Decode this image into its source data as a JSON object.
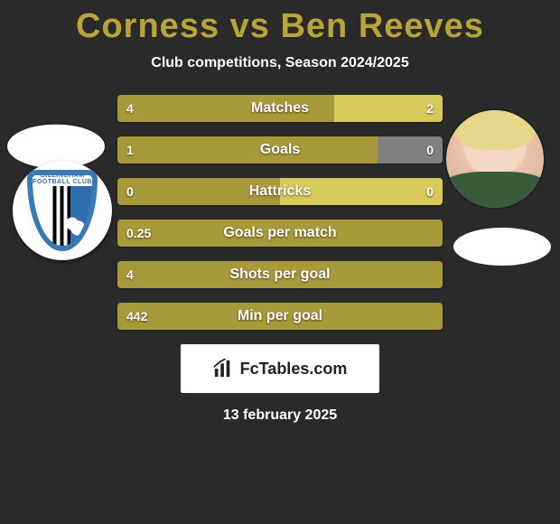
{
  "title_color": "#b7a53a",
  "player_left": "Corness",
  "player_right": "Ben Reeves",
  "subtitle": "Club competitions, Season 2024/2025",
  "left_color": "#a89a3a",
  "right_color": "#d7c95a",
  "neutral_color": "#808080",
  "stats": [
    {
      "label": "Matches",
      "left_val": "4",
      "right_val": "2",
      "left_pct": 66.7,
      "right_pct": 33.3,
      "right_neutral": false
    },
    {
      "label": "Goals",
      "left_val": "1",
      "right_val": "0",
      "left_pct": 80,
      "right_pct": 20,
      "right_neutral": true
    },
    {
      "label": "Hattricks",
      "left_val": "0",
      "right_val": "0",
      "left_pct": 50,
      "right_pct": 50,
      "right_neutral": false
    },
    {
      "label": "Goals per match",
      "left_val": "0.25",
      "right_val": "",
      "left_pct": 100,
      "right_pct": 0,
      "right_neutral": false
    },
    {
      "label": "Shots per goal",
      "left_val": "4",
      "right_val": "",
      "left_pct": 100,
      "right_pct": 0,
      "right_neutral": false
    },
    {
      "label": "Min per goal",
      "left_val": "442",
      "right_val": "",
      "left_pct": 100,
      "right_pct": 0,
      "right_neutral": false
    }
  ],
  "badge_text": "FcTables.com",
  "date": "13 february 2025",
  "club_left_text": "GILLINGHAM FOOTBALL CLUB"
}
